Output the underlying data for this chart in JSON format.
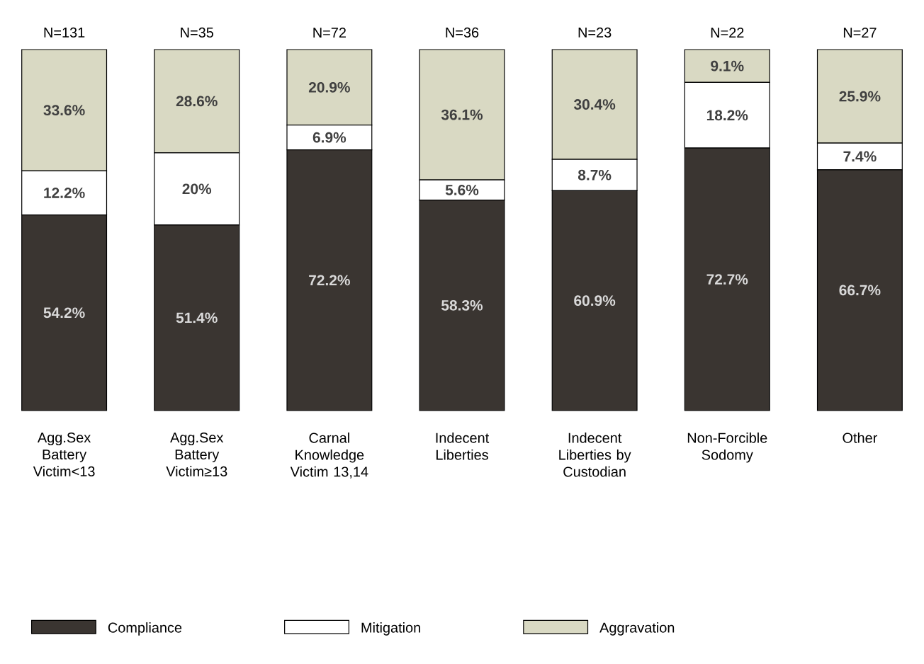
{
  "chart_data": {
    "type": "bar",
    "stacked": true,
    "categories": [
      "Agg.Sex Battery Victim<13",
      "Agg.Sex Battery Victim≥13",
      "Carnal Knowledge Victim 13,14",
      "Indecent Liberties",
      "Indecent Liberties by Custodian",
      "Non-Forcible Sodomy",
      "Other"
    ],
    "series": [
      {
        "name": "Compliance",
        "color": "#3a3531",
        "values": [
          54.2,
          51.4,
          72.2,
          58.3,
          60.9,
          72.7,
          66.7
        ],
        "value_labels": [
          "54.2%",
          "51.4%",
          "72.2%",
          "58.3%",
          "60.9%",
          "72.7%",
          "66.7%"
        ]
      },
      {
        "name": "Mitigation",
        "color": "#ffffff",
        "values": [
          12.2,
          20,
          6.9,
          5.6,
          8.7,
          18.2,
          7.4
        ],
        "value_labels": [
          "12.2%",
          "20%",
          "6.9%",
          "5.6%",
          "8.7%",
          "18.2%",
          "7.4%"
        ]
      },
      {
        "name": "Aggravation",
        "color": "#d9d9c3",
        "values": [
          33.6,
          28.6,
          20.9,
          36.1,
          30.4,
          9.1,
          25.9
        ],
        "value_labels": [
          "33.6%",
          "28.6%",
          "20.9%",
          "36.1%",
          "30.4%",
          "9.1%",
          "25.9%"
        ]
      }
    ],
    "annotations": [
      {
        "text": "N=131",
        "x": "Agg.Sex Battery Victim<13",
        "y": 100
      },
      {
        "text": "N=35",
        "x": "Agg.Sex Battery Victim≥13",
        "y": 100
      },
      {
        "text": "N=72",
        "x": "Carnal Knowledge Victim 13,14",
        "y": 100
      },
      {
        "text": "N=36",
        "x": "Indecent Liberties",
        "y": 100
      },
      {
        "text": "N=23",
        "x": "Indecent Liberties by Custodian",
        "y": 100
      },
      {
        "text": "N=22",
        "x": "Non-Forcible Sodomy",
        "y": 100
      },
      {
        "text": "N=27",
        "x": "Other",
        "y": 100
      }
    ],
    "legend": "bottom"
  }
}
